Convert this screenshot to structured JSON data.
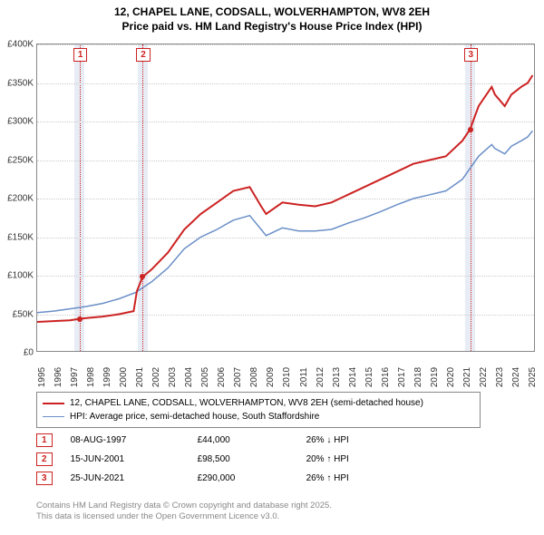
{
  "title_line1": "12, CHAPEL LANE, CODSALL, WOLVERHAMPTON, WV8 2EH",
  "title_line2": "Price paid vs. HM Land Registry's House Price Index (HPI)",
  "chart": {
    "type": "line",
    "background_color": "#ffffff",
    "grid_color": "#cccccc",
    "border_color": "#888888",
    "y": {
      "min": 0,
      "max": 400000,
      "step": 50000,
      "ticks": [
        "£0",
        "£50K",
        "£100K",
        "£150K",
        "£200K",
        "£250K",
        "£300K",
        "£350K",
        "£400K"
      ]
    },
    "x": {
      "min": 1995,
      "max": 2025.5,
      "ticks": [
        1995,
        1996,
        1997,
        1998,
        1999,
        2000,
        2001,
        2002,
        2003,
        2004,
        2005,
        2006,
        2007,
        2008,
        2009,
        2010,
        2011,
        2012,
        2013,
        2014,
        2015,
        2016,
        2017,
        2018,
        2019,
        2020,
        2021,
        2022,
        2023,
        2024,
        2025
      ]
    },
    "markers": [
      {
        "idx": "1",
        "x": 1997.6,
        "y": 44000,
        "band_width_years": 0.6
      },
      {
        "idx": "2",
        "x": 2001.45,
        "y": 98500,
        "band_width_years": 0.6
      },
      {
        "idx": "3",
        "x": 2021.48,
        "y": 290000,
        "band_width_years": 0.6
      }
    ],
    "marker_band_color": "#e8ecf4",
    "marker_line_color": "#cc2222",
    "marker_dot_color": "#cc2222",
    "series": [
      {
        "name": "price_paid",
        "color": "#cc2222",
        "width": 2,
        "legend": "12, CHAPEL LANE, CODSALL, WOLVERHAMPTON, WV8 2EH (semi-detached house)",
        "points": [
          [
            1995,
            40000
          ],
          [
            1996,
            41000
          ],
          [
            1997,
            42000
          ],
          [
            1997.6,
            44000
          ],
          [
            1998,
            45000
          ],
          [
            1999,
            47000
          ],
          [
            2000,
            50000
          ],
          [
            2000.9,
            54000
          ],
          [
            2001.1,
            80000
          ],
          [
            2001.45,
            98500
          ],
          [
            2002,
            108000
          ],
          [
            2003,
            130000
          ],
          [
            2004,
            160000
          ],
          [
            2005,
            180000
          ],
          [
            2006,
            195000
          ],
          [
            2007,
            210000
          ],
          [
            2008,
            215000
          ],
          [
            2008.7,
            190000
          ],
          [
            2009,
            180000
          ],
          [
            2010,
            195000
          ],
          [
            2011,
            192000
          ],
          [
            2012,
            190000
          ],
          [
            2013,
            195000
          ],
          [
            2014,
            205000
          ],
          [
            2015,
            215000
          ],
          [
            2016,
            225000
          ],
          [
            2017,
            235000
          ],
          [
            2018,
            245000
          ],
          [
            2019,
            250000
          ],
          [
            2020,
            255000
          ],
          [
            2021,
            275000
          ],
          [
            2021.48,
            290000
          ],
          [
            2022,
            320000
          ],
          [
            2022.8,
            345000
          ],
          [
            2023,
            335000
          ],
          [
            2023.6,
            320000
          ],
          [
            2024,
            335000
          ],
          [
            2024.6,
            345000
          ],
          [
            2025,
            350000
          ],
          [
            2025.3,
            360000
          ]
        ]
      },
      {
        "name": "hpi",
        "color": "#6a8fc7",
        "width": 1.5,
        "legend": "HPI: Average price, semi-detached house, South Staffordshire",
        "points": [
          [
            1995,
            52000
          ],
          [
            1996,
            54000
          ],
          [
            1997,
            57000
          ],
          [
            1998,
            60000
          ],
          [
            1999,
            64000
          ],
          [
            2000,
            70000
          ],
          [
            2001,
            78000
          ],
          [
            2002,
            92000
          ],
          [
            2003,
            110000
          ],
          [
            2004,
            135000
          ],
          [
            2005,
            150000
          ],
          [
            2006,
            160000
          ],
          [
            2007,
            172000
          ],
          [
            2008,
            178000
          ],
          [
            2008.7,
            160000
          ],
          [
            2009,
            152000
          ],
          [
            2010,
            162000
          ],
          [
            2011,
            158000
          ],
          [
            2012,
            158000
          ],
          [
            2013,
            160000
          ],
          [
            2014,
            168000
          ],
          [
            2015,
            175000
          ],
          [
            2016,
            183000
          ],
          [
            2017,
            192000
          ],
          [
            2018,
            200000
          ],
          [
            2019,
            205000
          ],
          [
            2020,
            210000
          ],
          [
            2021,
            225000
          ],
          [
            2022,
            255000
          ],
          [
            2022.8,
            270000
          ],
          [
            2023,
            265000
          ],
          [
            2023.6,
            258000
          ],
          [
            2024,
            268000
          ],
          [
            2024.6,
            275000
          ],
          [
            2025,
            280000
          ],
          [
            2025.3,
            288000
          ]
        ]
      }
    ]
  },
  "trades": [
    {
      "idx": "1",
      "date": "08-AUG-1997",
      "price": "£44,000",
      "diff": "26% ↓ HPI"
    },
    {
      "idx": "2",
      "date": "15-JUN-2001",
      "price": "£98,500",
      "diff": "20% ↑ HPI"
    },
    {
      "idx": "3",
      "date": "25-JUN-2021",
      "price": "£290,000",
      "diff": "26% ↑ HPI"
    }
  ],
  "footer_line1": "Contains HM Land Registry data © Crown copyright and database right 2025.",
  "footer_line2": "This data is licensed under the Open Government Licence v3.0."
}
